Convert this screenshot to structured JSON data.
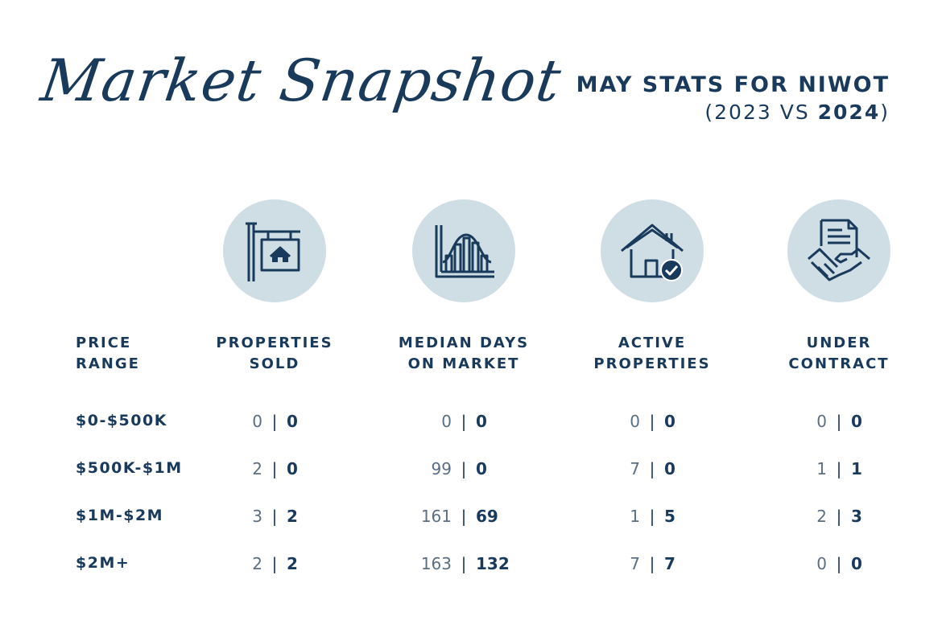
{
  "header": {
    "title": "Market Snapshot",
    "subtitle_line1": "MAY STATS FOR NIWOT",
    "subtitle_open": "(2023 VS ",
    "subtitle_bold": "2024",
    "subtitle_close": ")"
  },
  "icons": [
    "for-sale-sign-icon",
    "bar-chart-icon",
    "house-check-icon",
    "contract-handshake-icon"
  ],
  "columns": {
    "price_range": [
      "PRICE",
      "RANGE"
    ],
    "properties_sold": [
      "PROPERTIES",
      "SOLD"
    ],
    "median_days": [
      "MEDIAN DAYS",
      "ON MARKET"
    ],
    "active": [
      "ACTIVE",
      "PROPERTIES"
    ],
    "under_contract": [
      "UNDER",
      "CONTRACT"
    ]
  },
  "separator": "|",
  "rows": [
    {
      "range": "$0-$500K",
      "sold": [
        "0",
        "0"
      ],
      "days": [
        "0",
        "0"
      ],
      "active": [
        "0",
        "0"
      ],
      "contract": [
        "0",
        "0"
      ]
    },
    {
      "range": "$500K-$1M",
      "sold": [
        "2",
        "0"
      ],
      "days": [
        "99",
        "0"
      ],
      "active": [
        "7",
        "0"
      ],
      "contract": [
        "1",
        "1"
      ]
    },
    {
      "range": "$1M-$2M",
      "sold": [
        "3",
        "2"
      ],
      "days": [
        "161",
        "69"
      ],
      "active": [
        "1",
        "5"
      ],
      "contract": [
        "2",
        "3"
      ]
    },
    {
      "range": "$2M+",
      "sold": [
        "2",
        "2"
      ],
      "days": [
        "163",
        "132"
      ],
      "active": [
        "7",
        "7"
      ],
      "contract": [
        "0",
        "0"
      ]
    }
  ],
  "colors": {
    "navy": "#1a3a5c",
    "circle": "#cfdde5",
    "muted": "#5a6f83"
  }
}
